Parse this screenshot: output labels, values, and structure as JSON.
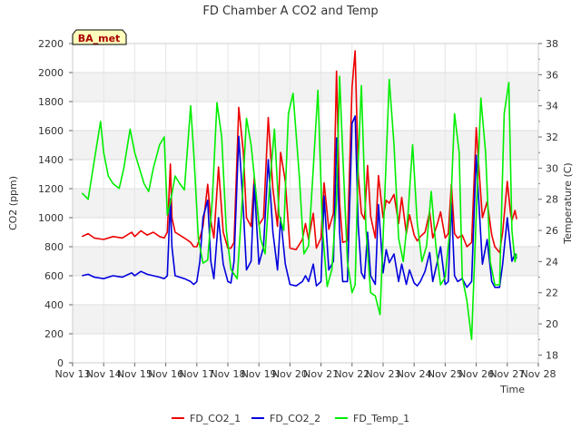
{
  "chart_data": {
    "type": "line",
    "title": "FD Chamber A CO2 and Temp",
    "xlabel": "Time",
    "ylabel": "CO2 (ppm)",
    "y2label": "Temperature (C)",
    "badge": "BA_met",
    "x_ticks": [
      "Nov 13",
      "Nov 14",
      "Nov 15",
      "Nov 16",
      "Nov 17",
      "Nov 18",
      "Nov 19",
      "Nov 20",
      "Nov 21",
      "Nov 22",
      "Nov 23",
      "Nov 24",
      "Nov 25",
      "Nov 26",
      "Nov 27",
      "Nov 28"
    ],
    "xlim": [
      13,
      28
    ],
    "ylim": [
      0,
      2200
    ],
    "y_ticks": [
      0,
      200,
      400,
      600,
      800,
      1000,
      1200,
      1400,
      1600,
      1800,
      2000,
      2200
    ],
    "y2lim": [
      17.5,
      38
    ],
    "y2_ticks": [
      18,
      20,
      22,
      24,
      26,
      28,
      30,
      32,
      34,
      36,
      38
    ],
    "grid": true,
    "legend_position": "bottom",
    "series": [
      {
        "name": "FD_CO2_1",
        "axis": "left",
        "color": "#ee0000",
        "x": [
          13.3,
          13.5,
          13.7,
          14.0,
          14.3,
          14.6,
          14.9,
          15.0,
          15.2,
          15.4,
          15.6,
          15.8,
          15.95,
          16.05,
          16.15,
          16.2,
          16.3,
          16.45,
          16.6,
          16.8,
          16.9,
          17.0,
          17.1,
          17.2,
          17.35,
          17.45,
          17.55,
          17.7,
          17.85,
          18.0,
          18.1,
          18.2,
          18.35,
          18.5,
          18.6,
          18.75,
          18.85,
          19.0,
          19.15,
          19.3,
          19.45,
          19.6,
          19.7,
          19.85,
          20.0,
          20.2,
          20.4,
          20.5,
          20.6,
          20.75,
          20.85,
          21.0,
          21.1,
          21.25,
          21.4,
          21.5,
          21.6,
          21.7,
          21.85,
          22.0,
          22.1,
          22.2,
          22.3,
          22.4,
          22.5,
          22.6,
          22.75,
          22.85,
          23.0,
          23.1,
          23.2,
          23.35,
          23.5,
          23.6,
          23.75,
          23.85,
          24.0,
          24.1,
          24.2,
          24.35,
          24.5,
          24.6,
          24.75,
          24.85,
          25.0,
          25.1,
          25.2,
          25.3,
          25.4,
          25.55,
          25.7,
          25.85,
          26.0,
          26.1,
          26.2,
          26.35,
          26.5,
          26.6,
          26.75,
          26.85,
          27.0,
          27.1,
          27.15,
          27.25,
          27.3
        ],
        "values": [
          870,
          890,
          860,
          850,
          870,
          860,
          900,
          870,
          910,
          880,
          900,
          870,
          860,
          900,
          1370,
          1000,
          900,
          880,
          860,
          830,
          800,
          800,
          860,
          940,
          1230,
          980,
          860,
          1350,
          900,
          790,
          790,
          830,
          1760,
          1450,
          1000,
          940,
          1280,
          950,
          1000,
          1690,
          1200,
          940,
          1450,
          1250,
          790,
          780,
          850,
          960,
          850,
          1030,
          790,
          860,
          1240,
          920,
          1030,
          2010,
          1100,
          830,
          840,
          1900,
          2150,
          1300,
          1030,
          990,
          1360,
          1010,
          860,
          1290,
          1000,
          1120,
          1100,
          1160,
          960,
          1140,
          890,
          1020,
          880,
          840,
          870,
          900,
          1040,
          860,
          960,
          1040,
          860,
          890,
          1230,
          890,
          860,
          880,
          800,
          830,
          1620,
          1300,
          1000,
          1110,
          880,
          800,
          760,
          900,
          1250,
          1040,
          980,
          1050,
          990
        ]
      },
      {
        "name": "FD_CO2_2",
        "axis": "left",
        "color": "#0000dd",
        "x": [
          13.3,
          13.5,
          13.7,
          14.0,
          14.3,
          14.6,
          14.9,
          15.0,
          15.2,
          15.4,
          15.6,
          15.8,
          15.95,
          16.05,
          16.15,
          16.2,
          16.3,
          16.45,
          16.6,
          16.8,
          16.9,
          17.0,
          17.1,
          17.2,
          17.35,
          17.45,
          17.55,
          17.7,
          17.85,
          18.0,
          18.1,
          18.2,
          18.35,
          18.5,
          18.6,
          18.75,
          18.85,
          19.0,
          19.15,
          19.3,
          19.45,
          19.6,
          19.7,
          19.85,
          20.0,
          20.2,
          20.4,
          20.5,
          20.6,
          20.75,
          20.85,
          21.0,
          21.1,
          21.25,
          21.4,
          21.5,
          21.6,
          21.7,
          21.85,
          22.0,
          22.1,
          22.2,
          22.3,
          22.4,
          22.5,
          22.6,
          22.75,
          22.85,
          23.0,
          23.1,
          23.2,
          23.35,
          23.5,
          23.6,
          23.75,
          23.85,
          24.0,
          24.1,
          24.2,
          24.35,
          24.5,
          24.6,
          24.75,
          24.85,
          25.0,
          25.1,
          25.2,
          25.3,
          25.4,
          25.55,
          25.7,
          25.85,
          26.0,
          26.1,
          26.2,
          26.35,
          26.5,
          26.6,
          26.75,
          26.85,
          27.0,
          27.1,
          27.15,
          27.25,
          27.3
        ],
        "values": [
          600,
          610,
          590,
          580,
          600,
          590,
          620,
          600,
          630,
          610,
          600,
          590,
          580,
          600,
          1130,
          800,
          600,
          590,
          580,
          560,
          540,
          560,
          700,
          1000,
          1120,
          700,
          580,
          1000,
          680,
          560,
          550,
          700,
          1560,
          1050,
          640,
          700,
          1230,
          680,
          800,
          1400,
          900,
          640,
          1000,
          680,
          540,
          530,
          560,
          600,
          560,
          680,
          530,
          560,
          1150,
          640,
          700,
          1550,
          900,
          560,
          560,
          1650,
          1700,
          950,
          620,
          580,
          900,
          600,
          540,
          1090,
          620,
          780,
          690,
          750,
          560,
          680,
          540,
          640,
          550,
          530,
          560,
          630,
          760,
          560,
          700,
          800,
          540,
          560,
          1100,
          600,
          560,
          580,
          520,
          560,
          1430,
          1050,
          680,
          850,
          560,
          520,
          520,
          680,
          1000,
          800,
          700,
          750,
          720
        ]
      },
      {
        "name": "FD_Temp_1",
        "axis": "right",
        "color": "#00ee00",
        "x": [
          13.3,
          13.5,
          13.7,
          13.9,
          14.0,
          14.15,
          14.3,
          14.5,
          14.65,
          14.85,
          15.0,
          15.15,
          15.3,
          15.45,
          15.6,
          15.8,
          15.95,
          16.05,
          16.15,
          16.3,
          16.45,
          16.6,
          16.8,
          16.9,
          17.05,
          17.2,
          17.35,
          17.5,
          17.65,
          17.8,
          17.95,
          18.1,
          18.3,
          18.45,
          18.6,
          18.75,
          18.9,
          19.05,
          19.2,
          19.35,
          19.5,
          19.65,
          19.8,
          19.95,
          20.1,
          20.3,
          20.45,
          20.6,
          20.75,
          20.9,
          21.05,
          21.2,
          21.35,
          21.5,
          21.6,
          21.7,
          21.85,
          22.0,
          22.1,
          22.2,
          22.3,
          22.45,
          22.6,
          22.75,
          22.9,
          23.05,
          23.2,
          23.35,
          23.5,
          23.65,
          23.8,
          23.95,
          24.1,
          24.25,
          24.4,
          24.55,
          24.7,
          24.85,
          25.0,
          25.15,
          25.3,
          25.45,
          25.55,
          25.7,
          25.85,
          26.0,
          26.15,
          26.3,
          26.45,
          26.6,
          26.75,
          26.9,
          27.05,
          27.15,
          27.25,
          27.3
        ],
        "values": [
          28.4,
          28.0,
          30.5,
          33.0,
          31.0,
          29.5,
          29.0,
          28.7,
          30.0,
          32.5,
          31.0,
          30.0,
          29.0,
          28.5,
          30.0,
          31.5,
          32.0,
          27.0,
          27.8,
          29.5,
          29.0,
          28.6,
          34.0,
          31.0,
          25.5,
          23.9,
          24.1,
          28.0,
          34.2,
          32.0,
          26.0,
          23.5,
          22.9,
          27.5,
          33.2,
          31.5,
          28.5,
          25.5,
          24.5,
          29.0,
          32.5,
          27.0,
          26.0,
          33.5,
          34.8,
          29.5,
          24.5,
          25.0,
          30.0,
          35.0,
          26.0,
          22.4,
          23.5,
          28.0,
          35.9,
          31.0,
          24.0,
          22.0,
          22.5,
          30.5,
          35.3,
          26.0,
          22.0,
          21.8,
          20.6,
          28.0,
          35.7,
          31.5,
          25.5,
          24.0,
          27.0,
          31.5,
          26.5,
          24.0,
          25.0,
          28.5,
          25.0,
          22.5,
          23.0,
          26.0,
          33.5,
          31.0,
          23.0,
          21.5,
          19.0,
          27.0,
          34.5,
          31.0,
          24.0,
          22.5,
          22.5,
          33.5,
          35.5,
          26.0,
          24.0,
          24.5
        ]
      }
    ]
  }
}
